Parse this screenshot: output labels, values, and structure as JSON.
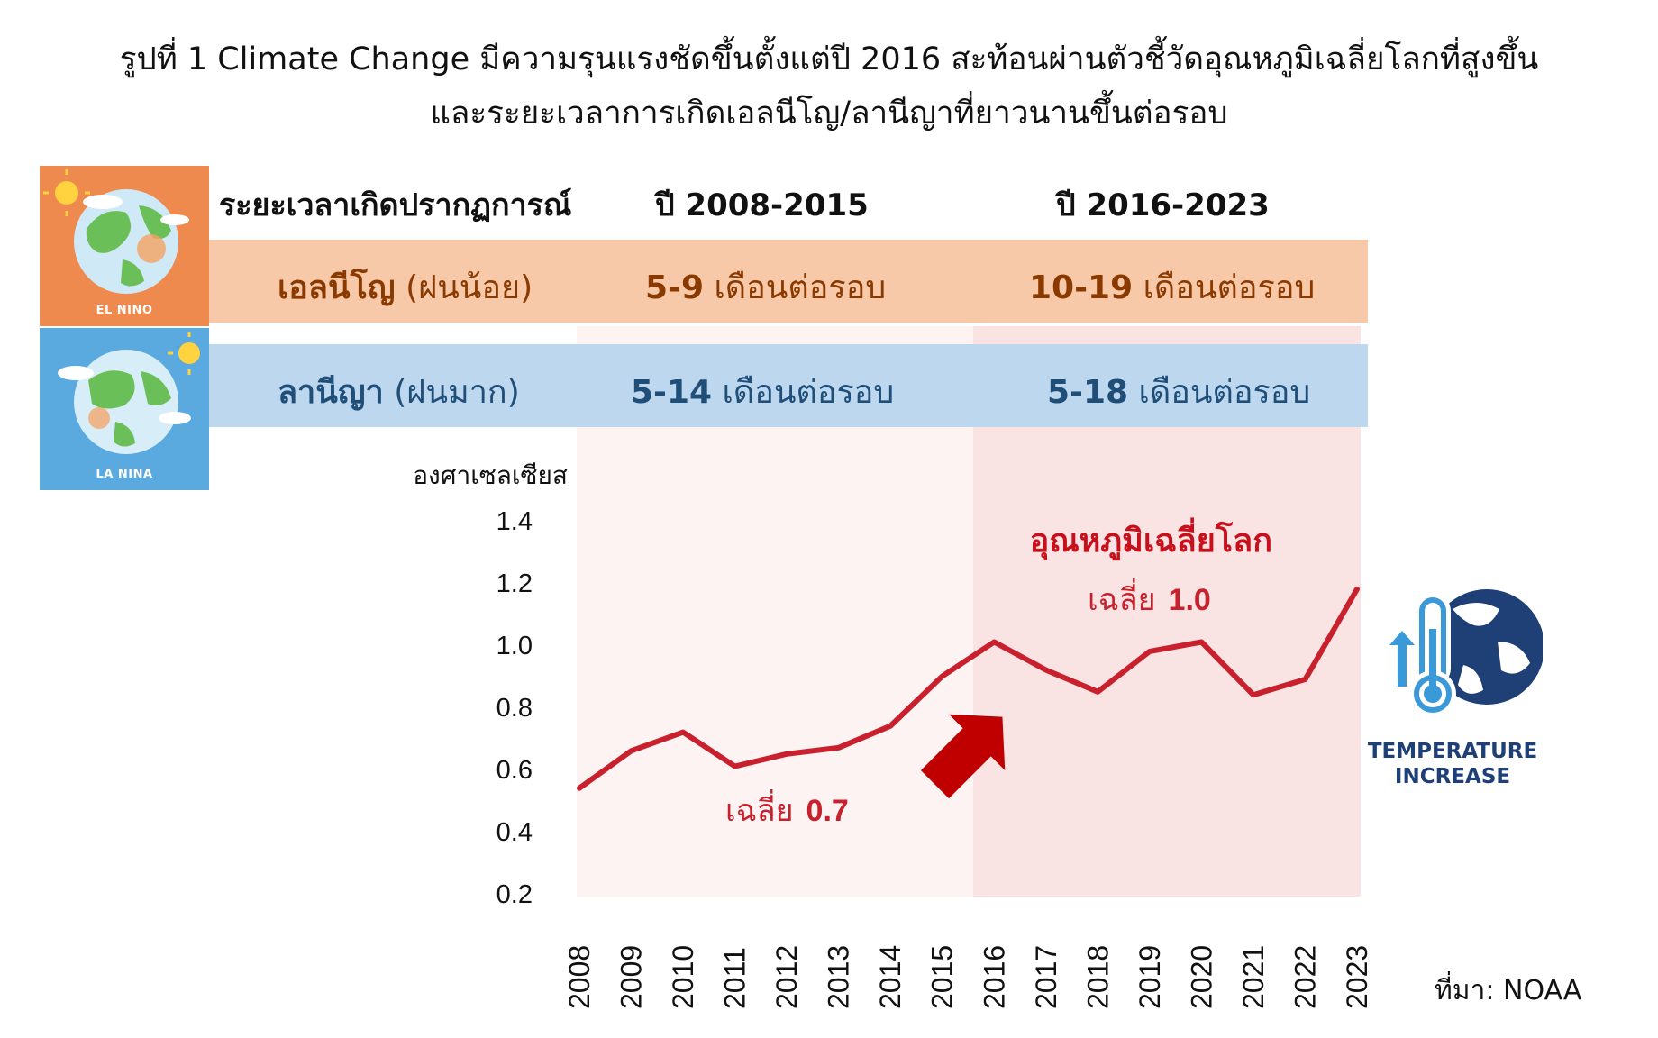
{
  "title": {
    "line1": "รูปที่ 1 Climate Change มีความรุนแรงชัดขึ้นตั้งแต่ปี 2016 สะท้อนผ่านตัวชี้วัดอุณหภูมิเฉลี่ยโลกที่สูงขึ้น",
    "line2": "และระยะเวลาการเกิดเอลนีโญ/ลานีญาที่ยาวนานขึ้นต่อรอบ"
  },
  "table": {
    "headers": [
      "ระยะเวลาเกิดปรากฏการณ์",
      "ปี 2008-2015",
      "ปี 2016-2023"
    ],
    "rows": [
      {
        "name": "เอลนีโญ",
        "note": "(ฝนน้อย)",
        "p1_value": "5-9",
        "p1_unit": "เดือนต่อรอบ",
        "p2_value": "10-19",
        "p2_unit": "เดือนต่อรอบ"
      },
      {
        "name": "ลานีญา",
        "note": "(ฝนมาก)",
        "p1_value": "5-14",
        "p1_unit": "เดือนต่อรอบ",
        "p2_value": "5-18",
        "p2_unit": "เดือนต่อรอบ"
      }
    ]
  },
  "icons": {
    "el_nino_label": "EL NINO",
    "la_nina_label": "LA NINA",
    "temperature_label_1": "TEMPERATURE",
    "temperature_label_2": "INCREASE"
  },
  "colors": {
    "el_nino_band": "#f7c9a8",
    "la_nina_band": "#bdd7ee",
    "el_nino_icon_bg": "#ef8a4e",
    "la_nina_icon_bg": "#5aa9df",
    "line": "#c8202c",
    "temperature_icon": "#1f3f77"
  },
  "chart_data": {
    "type": "line",
    "ylabel": "องศาเซลเซียส",
    "ylim": [
      0.2,
      1.4
    ],
    "yticks": [
      "0.2",
      "0.4",
      "0.6",
      "0.8",
      "1.0",
      "1.2",
      "1.4"
    ],
    "categories": [
      "2008",
      "2009",
      "2010",
      "2011",
      "2012",
      "2013",
      "2014",
      "2015",
      "2016",
      "2017",
      "2018",
      "2019",
      "2020",
      "2021",
      "2022",
      "2023"
    ],
    "series": [
      {
        "name": "อุณหภูมิเฉลี่ยโลก",
        "values": [
          0.54,
          0.66,
          0.72,
          0.61,
          0.65,
          0.67,
          0.74,
          0.9,
          1.01,
          0.92,
          0.85,
          0.98,
          1.01,
          0.84,
          0.89,
          1.18
        ]
      }
    ],
    "annotations": {
      "avg1_label": "เฉลี่ย",
      "avg1_value": "0.7",
      "avg2_label": "เฉลี่ย",
      "avg2_value": "1.0"
    },
    "grid": false
  },
  "source": "ที่มา: NOAA"
}
